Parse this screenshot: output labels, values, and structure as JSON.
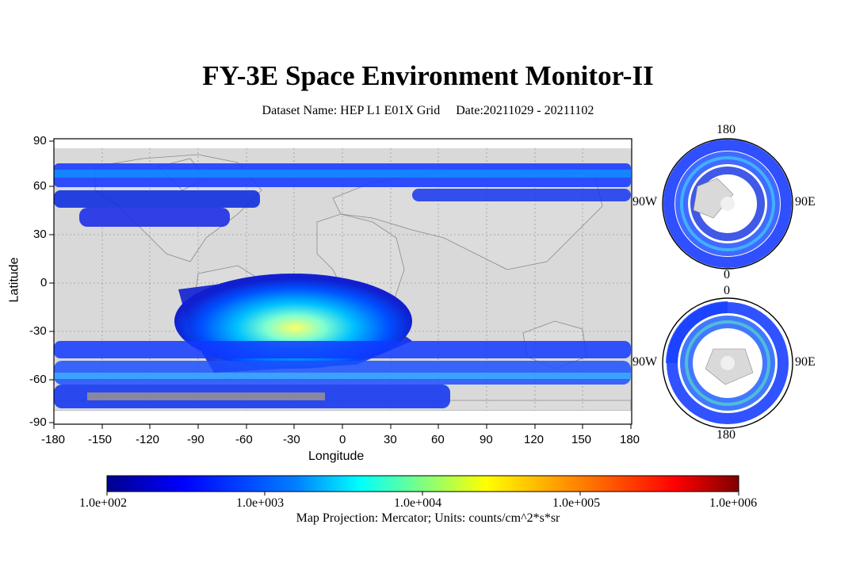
{
  "title": "FY-3E Space Environment Monitor-II",
  "subtitle": {
    "dataset": "Dataset Name: HEP L1 E01X Grid",
    "date": "Date:20211029 - 20211102"
  },
  "map": {
    "projection": "Mercator",
    "background_color": "#d9d9d9",
    "xlabel": "Longitude",
    "ylabel": "Latitude",
    "xticks": [
      "-180",
      "-150",
      "-120",
      "-90",
      "-60",
      "-30",
      "0",
      "30",
      "60",
      "90",
      "120",
      "150",
      "180"
    ],
    "yticks": [
      "90",
      "60",
      "30",
      "0",
      "-30",
      "-60",
      "-90"
    ],
    "grid": "dotted"
  },
  "polar_north": {
    "top": "180",
    "bottom": "0",
    "left": "90W",
    "right": "90E"
  },
  "polar_south": {
    "top": "0",
    "bottom": "180",
    "left": "90W",
    "right": "90E"
  },
  "colorbar": {
    "labels": [
      "1.0e+002",
      "1.0e+003",
      "1.0e+004",
      "1.0e+005",
      "1.0e+006"
    ],
    "colors": [
      "#00008f",
      "#0000ff",
      "#0080ff",
      "#00ffff",
      "#80ff80",
      "#ffff00",
      "#ff8000",
      "#ff0000",
      "#800000"
    ]
  },
  "footer": "Map Projection: Mercator; Units: counts/cm^2*s*sr"
}
